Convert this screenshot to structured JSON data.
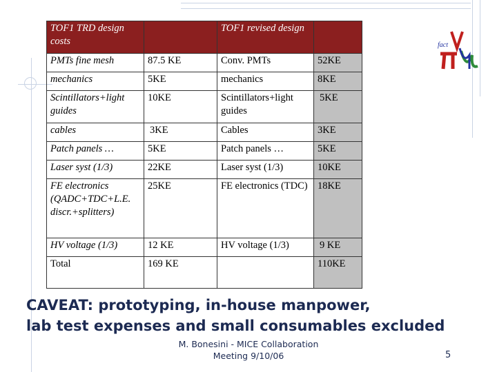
{
  "table": {
    "header": [
      "TOF1 TRD design costs",
      "",
      "TOF1 revised design",
      ""
    ],
    "rows": [
      [
        "PMTs fine mesh",
        "87.5 KE",
        "Conv. PMTs",
        "52KE"
      ],
      [
        "mechanics",
        "5KE",
        "mechanics",
        "8KE"
      ],
      [
        "Scintillators+light guides",
        "10KE",
        "Scintillators+light guides",
        "5KE"
      ],
      [
        "cables",
        "3KE",
        "Cables",
        "3KE"
      ],
      [
        "Patch panels …",
        "5KE",
        "Patch panels …",
        "5KE"
      ],
      [
        "Laser syst (1/3)",
        "22KE",
        "Laser syst (1/3)",
        "10KE"
      ],
      [
        "FE electronics (QADC+TDC+L.E. discr.+splitters)",
        "25KE",
        "FE electronics (TDC)",
        "18KE"
      ],
      [
        "HV voltage (1/3)",
        "12 KE",
        "HV voltage (1/3)",
        "9 KE"
      ],
      [
        "Total",
        "169 KE",
        "",
        "110KE"
      ]
    ]
  },
  "logo": {
    "text": "fact",
    "colors": {
      "red": "#c0201e",
      "green": "#2e8b3a",
      "blue": "#2233a0"
    }
  },
  "caveat": {
    "line1": "CAVEAT: prototyping,  in-house manpower,",
    "line2": "lab test expenses and small consumables excluded"
  },
  "footer": {
    "line1": "M. Bonesini - MICE Collaboration",
    "line2": "Meeting  9/10/06"
  },
  "page_number": "5"
}
